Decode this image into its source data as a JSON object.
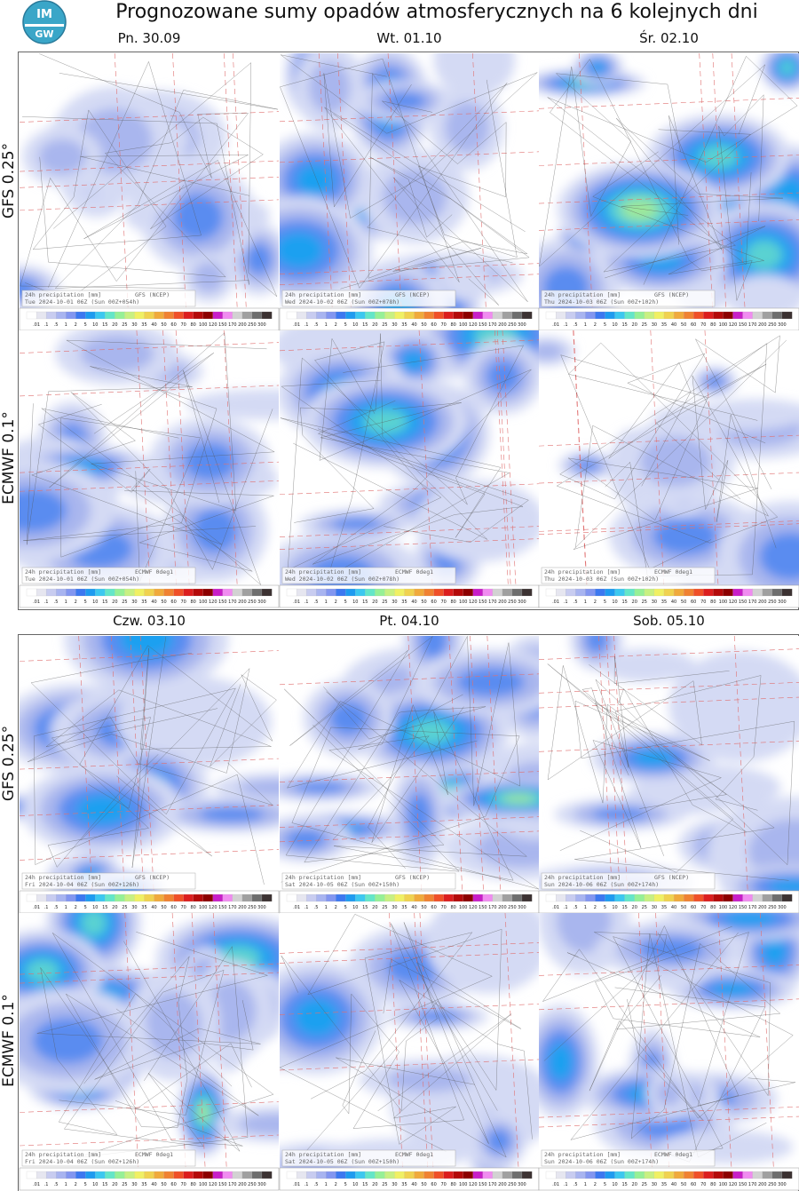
{
  "title": "Prognozowane sumy opadów atmosferycznych na 6 kolejnych dni",
  "logo": {
    "top": "IM",
    "bottom": "GW"
  },
  "caption_label": "24h precipitation  [mm]",
  "rows": [
    {
      "label": "GFS 0.25°",
      "model": "GFS (NCEP)"
    },
    {
      "label": "ECMWF 0.1°",
      "model": "ECMWF 0deg1"
    }
  ],
  "colorbar_labels": [
    ".01",
    ".1",
    ".5",
    "1",
    "2",
    "5",
    "10",
    "15",
    "20",
    "25",
    "30",
    "35",
    "40",
    "50",
    "60",
    "70",
    "80",
    "100",
    "120",
    "150",
    "170",
    "200",
    "250",
    "300"
  ],
  "colorbar_colors": [
    "#ffffff",
    "#e6e6f0",
    "#c8ccf0",
    "#a8b4f0",
    "#8296f0",
    "#3c78f0",
    "#1e9bf0",
    "#3cc8f0",
    "#64e6c8",
    "#96f096",
    "#c8f082",
    "#f0f064",
    "#f0d250",
    "#f0aa3c",
    "#f08232",
    "#f05028",
    "#dc1e1e",
    "#b40a0a",
    "#8c0000",
    "#c81ec8",
    "#f08cf0",
    "#d2d2d2",
    "#a0a0a0",
    "#6e6e6e",
    "#3c3232"
  ],
  "blocks": [
    {
      "days": [
        {
          "header": "Pn. 30.09",
          "valid": "Tue 2024-10-01 06Z (Sun 00Z+054h)"
        },
        {
          "header": "Wt. 01.10",
          "valid": "Wed 2024-10-02 06Z (Sun 00Z+078h)"
        },
        {
          "header": "Śr. 02.10",
          "valid": "Thu 2024-10-03 06Z (Sun 00Z+102h)"
        }
      ]
    },
    {
      "days": [
        {
          "header": "Czw. 03.10",
          "valid": "Fri 2024-10-04 06Z (Sun 00Z+126h)"
        },
        {
          "header": "Pt. 04.10",
          "valid": "Sat 2024-10-05 06Z (Sun 00Z+150h)"
        },
        {
          "header": "Sob. 05.10",
          "valid": "Sun 2024-10-06 06Z (Sun 00Z+174h)"
        }
      ]
    }
  ]
}
